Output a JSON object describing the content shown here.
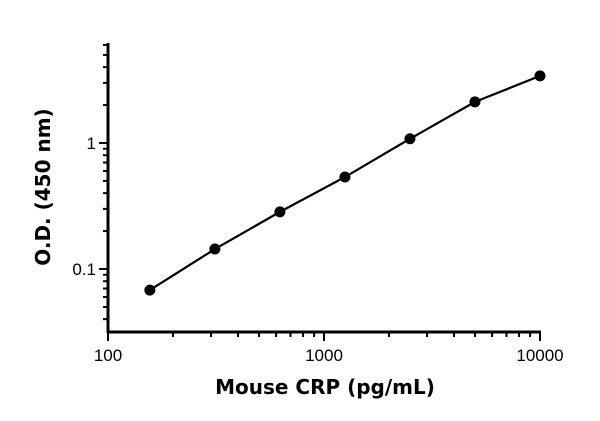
{
  "chart_data": {
    "type": "line",
    "title": "",
    "xlabel": "Mouse CRP (pg/mL)",
    "ylabel": "O.D. (450 nm)",
    "xscale": "log",
    "yscale": "log",
    "xlim": [
      100,
      10000
    ],
    "ylim": [
      0.03,
      6
    ],
    "xticks": [
      {
        "value": 100,
        "label": "100"
      },
      {
        "value": 1000,
        "label": "1000"
      },
      {
        "value": 10000,
        "label": "10000"
      }
    ],
    "yticks": [
      {
        "value": 0.1,
        "label": "0.1"
      },
      {
        "value": 1,
        "label": "1"
      }
    ],
    "grid": false,
    "series": [
      {
        "color": "#000000",
        "marker": "circle",
        "x": [
          156.25,
          312.5,
          625,
          1250,
          2500,
          5000,
          10000
        ],
        "y": [
          0.068,
          0.144,
          0.284,
          0.537,
          1.08,
          2.12,
          3.41
        ]
      }
    ]
  }
}
